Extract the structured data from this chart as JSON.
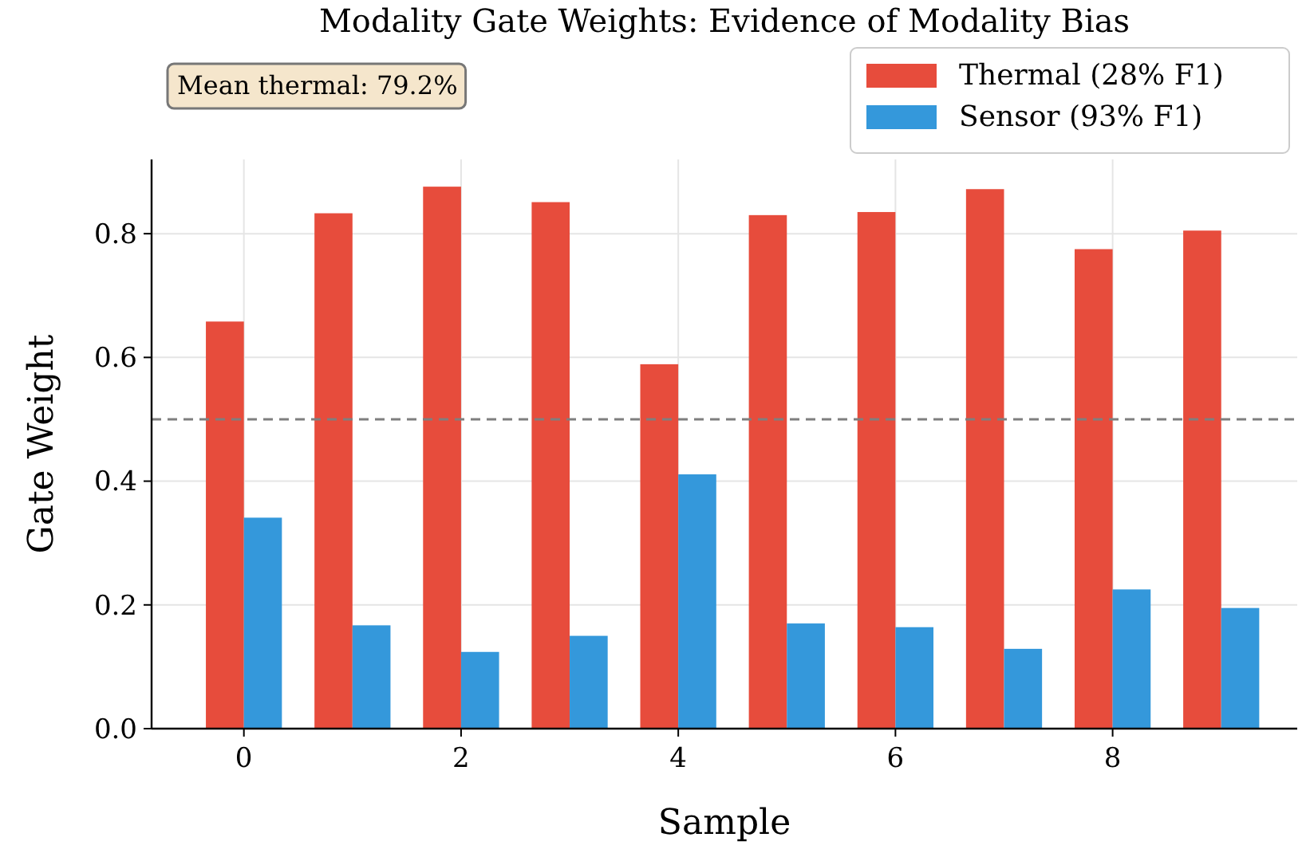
{
  "chart_data": {
    "type": "bar",
    "title": "Modality Gate Weights: Evidence of Modality Bias",
    "xlabel": "Sample",
    "ylabel": "Gate Weight",
    "x": [
      0,
      1,
      2,
      3,
      4,
      5,
      6,
      7,
      8,
      9
    ],
    "series": [
      {
        "name": "Thermal (28% F1)",
        "color": "#e74c3c",
        "values": [
          0.658,
          0.833,
          0.876,
          0.851,
          0.589,
          0.83,
          0.835,
          0.872,
          0.775,
          0.805
        ]
      },
      {
        "name": "Sensor (93% F1)",
        "color": "#3498db",
        "values": [
          0.341,
          0.167,
          0.124,
          0.15,
          0.411,
          0.17,
          0.164,
          0.129,
          0.225,
          0.195
        ]
      }
    ],
    "xlim": [
      -0.85,
      9.7
    ],
    "xticks": [
      0,
      2,
      4,
      6,
      8
    ],
    "ylim": [
      0,
      0.92
    ],
    "yticks": [
      {
        "value": 0,
        "label": "0.0"
      },
      0.2,
      0.4,
      0.6,
      0.8
    ],
    "ref_lines": [
      {
        "axis": "y",
        "value": 0.5,
        "color": "#7f7f7f",
        "line_style": "dashed"
      }
    ],
    "annotations": [
      "Mean thermal: 79.2%"
    ],
    "grid": true,
    "legend": "top right"
  }
}
